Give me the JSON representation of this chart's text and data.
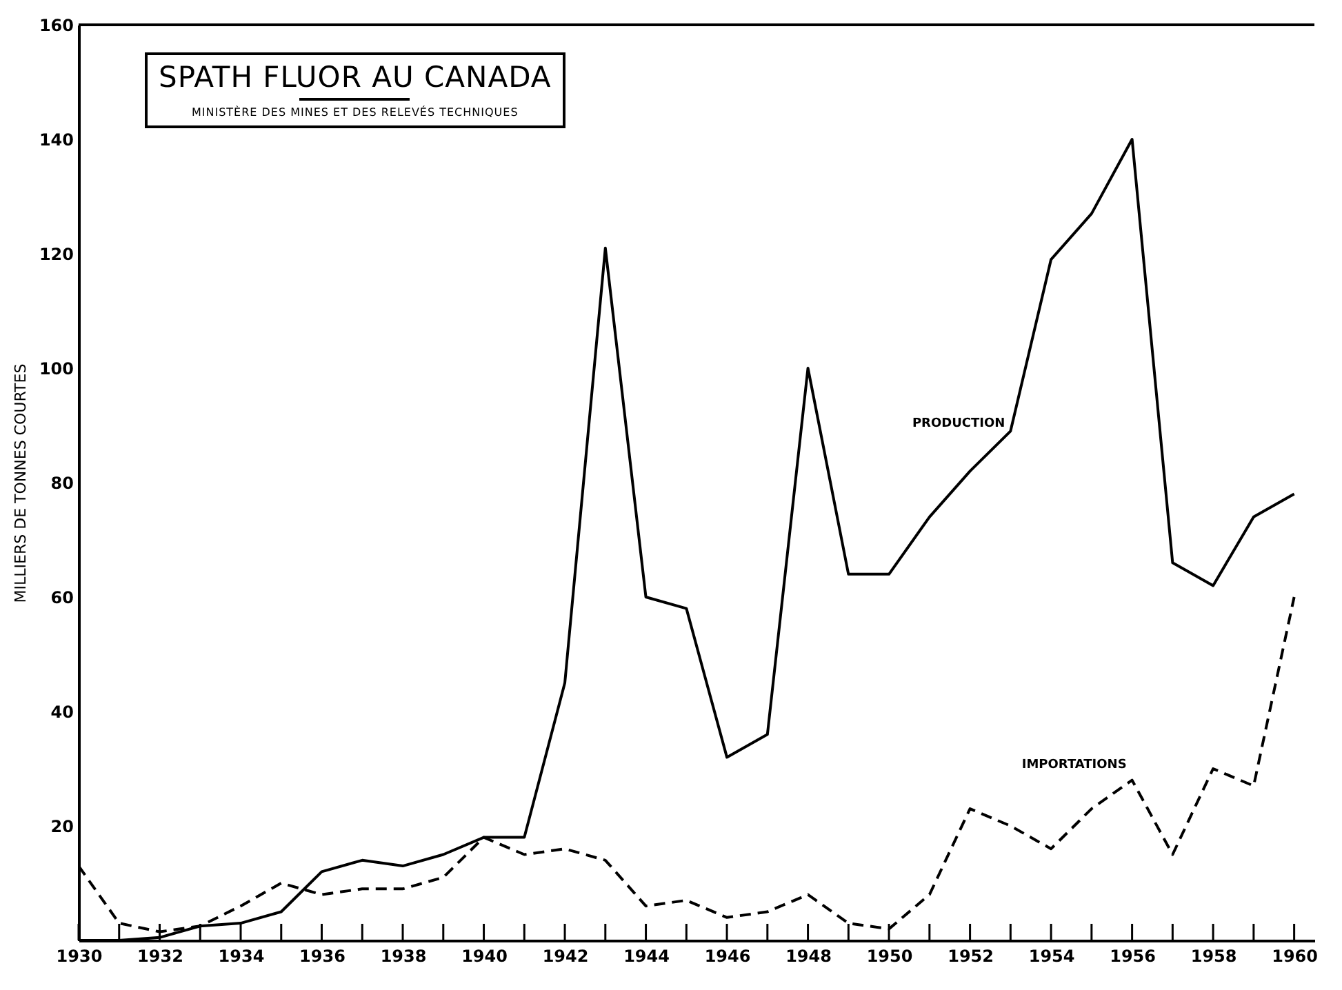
{
  "chart_data": {
    "type": "line",
    "title": "SPATH FLUOR AU CANADA",
    "subtitle": "MINISTÈRE DES MINES ET DES RELEVÉS TECHNIQUES",
    "ylabel": "MILLIERS DE TONNES COURTES",
    "x": [
      1930,
      1931,
      1932,
      1933,
      1934,
      1935,
      1936,
      1937,
      1938,
      1939,
      1940,
      1941,
      1942,
      1943,
      1944,
      1945,
      1946,
      1947,
      1948,
      1949,
      1950,
      1951,
      1952,
      1953,
      1954,
      1955,
      1956,
      1957,
      1958,
      1959,
      1960
    ],
    "series": [
      {
        "name": "PRODUCTION",
        "color": "#000000",
        "line_style": "solid",
        "values": [
          0,
          0,
          0.5,
          2.5,
          3,
          5,
          12,
          14,
          13,
          15,
          18,
          18,
          45,
          121,
          60,
          58,
          32,
          36,
          100,
          64,
          64,
          74,
          82,
          89,
          119,
          127,
          140,
          66,
          62,
          74,
          78
        ]
      },
      {
        "name": "IMPORTATIONS",
        "color": "#000000",
        "line_style": "dashed",
        "values": [
          13,
          3,
          1.5,
          2.5,
          6,
          10,
          8,
          9,
          9,
          11,
          18,
          15,
          16,
          14,
          6,
          7,
          4,
          5,
          8,
          3,
          2,
          8,
          23,
          20,
          16,
          23,
          28,
          15,
          30,
          27,
          60
        ]
      }
    ],
    "xlim": [
      1930,
      1960.5
    ],
    "xticks": [
      1930,
      {
        "value": 1931,
        "label": null
      },
      1932,
      {
        "value": 1933,
        "label": null
      },
      1934,
      {
        "value": 1935,
        "label": null
      },
      1936,
      {
        "value": 1937,
        "label": null
      },
      1938,
      {
        "value": 1939,
        "label": null
      },
      1940,
      {
        "value": 1941,
        "label": null
      },
      1942,
      {
        "value": 1943,
        "label": null
      },
      1944,
      {
        "value": 1945,
        "label": null
      },
      1946,
      {
        "value": 1947,
        "label": null
      },
      1948,
      {
        "value": 1949,
        "label": null
      },
      1950,
      {
        "value": 1951,
        "label": null
      },
      1952,
      {
        "value": 1953,
        "label": null
      },
      1954,
      {
        "value": 1955,
        "label": null
      },
      1956,
      {
        "value": 1957,
        "label": null
      },
      1958,
      {
        "value": 1959,
        "label": null
      },
      1960
    ],
    "ylim": [
      0,
      160
    ],
    "yticks": [
      20,
      40,
      60,
      80,
      100,
      120,
      140,
      160
    ],
    "grid": false,
    "legend": false,
    "marker": "none"
  }
}
